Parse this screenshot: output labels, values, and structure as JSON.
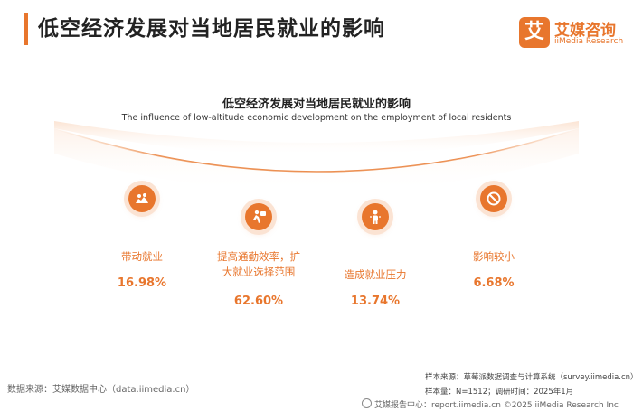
{
  "header": {
    "title": "低空经济发展对当地居民就业的影响",
    "logo_mark": "艾",
    "logo_cn": "艾媒咨询",
    "logo_en": "iiMedia Research"
  },
  "chart_data": {
    "type": "bar",
    "title": "低空经济发展对当地居民就业的影响",
    "subtitle": "The influence of low-altitude economic development on the employment of local residents",
    "categories": [
      "带动就业",
      "提高通勤效率，扩大就业选择范围",
      "造成就业压力",
      "影响较小"
    ],
    "category_lines": [
      [
        "带动就业"
      ],
      [
        "提高通勤效率，扩",
        "大就业选择范围"
      ],
      [
        "造成就业压力"
      ],
      [
        "影响较小"
      ]
    ],
    "values": [
      16.98,
      62.6,
      13.74,
      6.68
    ],
    "value_labels": [
      "16.98%",
      "62.60%",
      "13.74%",
      "6.68%"
    ],
    "icons": [
      "team-work-icon",
      "commute-efficiency-icon",
      "pressure-person-icon",
      "no-sign-icon"
    ],
    "unit": "%",
    "accent_color": "#e8762d",
    "light_color": "#fbe3d3"
  },
  "footer": {
    "source": "数据来源：艾媒数据中心（data.iimedia.cn）",
    "sample_source": "样本来源：草莓派数据调查与计算系统（survey.iimedia.cn）",
    "sample_info": "样本量：N=1512；调研时间：2025年1月",
    "copyright": "艾媒报告中心：report.iimedia.cn  ©2025  iiMedia Research Inc"
  }
}
